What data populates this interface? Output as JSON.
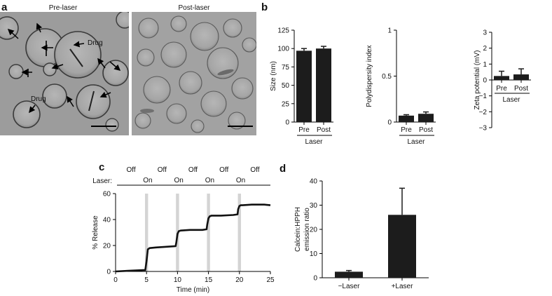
{
  "panels": {
    "a": "a",
    "b": "b",
    "c": "c",
    "d": "d"
  },
  "micrographs": {
    "pre_title": "Pre-laser",
    "post_title": "Post-laser",
    "drug_label_1": "Drug",
    "drug_label_2": "Drug"
  },
  "colors": {
    "bar": "#1c1c1c",
    "laser_band": "#d4d4d4",
    "micrograph_bg": "#9a9a9a"
  },
  "chart_data": [
    {
      "id": "size",
      "type": "bar",
      "categories": [
        "Pre",
        "Post"
      ],
      "values": [
        97,
        100
      ],
      "errors": [
        3,
        3
      ],
      "ylabel": "Size (nm)",
      "xlabel": "Laser",
      "ylim": [
        0,
        125
      ],
      "yticks": [
        0,
        25,
        50,
        75,
        100,
        125
      ]
    },
    {
      "id": "pdi",
      "type": "bar",
      "categories": [
        "Pre",
        "Post"
      ],
      "values": [
        0.07,
        0.09
      ],
      "errors": [
        0.01,
        0.02
      ],
      "ylabel": "Polydispersity index",
      "xlabel": "Laser",
      "ylim": [
        0,
        1
      ],
      "yticks": [
        0,
        0.5,
        1
      ],
      "ytick_labels": [
        "0",
        "0.5",
        "1"
      ]
    },
    {
      "id": "zeta",
      "type": "bar",
      "categories": [
        "Pre",
        "Post"
      ],
      "values": [
        0.25,
        0.35
      ],
      "errors": [
        0.3,
        0.35
      ],
      "ylabel": "Zeta potential (mV)",
      "xlabel": "Laser",
      "ylim": [
        -3,
        3
      ],
      "yticks": [
        -3,
        -2,
        -1,
        0,
        1,
        2,
        3
      ],
      "ytick_labels": [
        "−3",
        "−2",
        "−1",
        "0",
        "1",
        "2",
        "3"
      ]
    },
    {
      "id": "release",
      "type": "line",
      "xlabel": "Time (min)",
      "ylabel": "% Release",
      "xlim": [
        0,
        25
      ],
      "ylim": [
        0,
        60
      ],
      "xticks": [
        0,
        5,
        10,
        15,
        20,
        25
      ],
      "yticks": [
        0,
        20,
        40,
        60
      ],
      "laser_label": "Laser:",
      "laser_states": [
        {
          "label": "Off",
          "x": 2.5,
          "row": "top"
        },
        {
          "label": "On",
          "x": 5.2,
          "row": "bottom"
        },
        {
          "label": "Off",
          "x": 7.5,
          "row": "top"
        },
        {
          "label": "On",
          "x": 10.2,
          "row": "bottom"
        },
        {
          "label": "Off",
          "x": 12.5,
          "row": "top"
        },
        {
          "label": "On",
          "x": 15.2,
          "row": "bottom"
        },
        {
          "label": "Off",
          "x": 17.5,
          "row": "top"
        },
        {
          "label": "On",
          "x": 20.2,
          "row": "bottom"
        },
        {
          "label": "Off",
          "x": 22.5,
          "row": "top"
        }
      ],
      "laser_on_intervals": [
        [
          4.75,
          5.25
        ],
        [
          9.75,
          10.25
        ],
        [
          14.75,
          15.25
        ],
        [
          19.75,
          20.25
        ]
      ],
      "series": [
        {
          "x": [
            0,
            2,
            4.5,
            4.8,
            5.0,
            5.2,
            5.5,
            6.5,
            8,
            9.7,
            9.8,
            10.0,
            10.2,
            10.5,
            12,
            14,
            14.7,
            14.8,
            15.0,
            15.2,
            15.5,
            17,
            19,
            19.7,
            19.8,
            20.0,
            20.2,
            20.5,
            22,
            24,
            25
          ],
          "y": [
            0,
            0.5,
            1,
            1,
            8,
            17,
            18,
            18.5,
            19,
            19.5,
            22,
            29,
            31,
            31.5,
            32,
            32,
            32.5,
            36,
            41,
            42.5,
            43,
            43,
            43.5,
            44,
            48,
            50.5,
            51,
            51,
            51.5,
            51.5,
            51
          ]
        }
      ]
    },
    {
      "id": "ratio",
      "type": "bar",
      "categories": [
        "−Laser",
        "+Laser"
      ],
      "values": [
        2.5,
        26
      ],
      "errors": [
        0.5,
        11
      ],
      "ylabel": "Calcein:HPPH emission ratio",
      "ylabel_lines": [
        "Calcein:HPPH",
        "emission ratio"
      ],
      "ylim": [
        0,
        40
      ],
      "yticks": [
        0,
        10,
        20,
        30,
        40
      ]
    }
  ]
}
